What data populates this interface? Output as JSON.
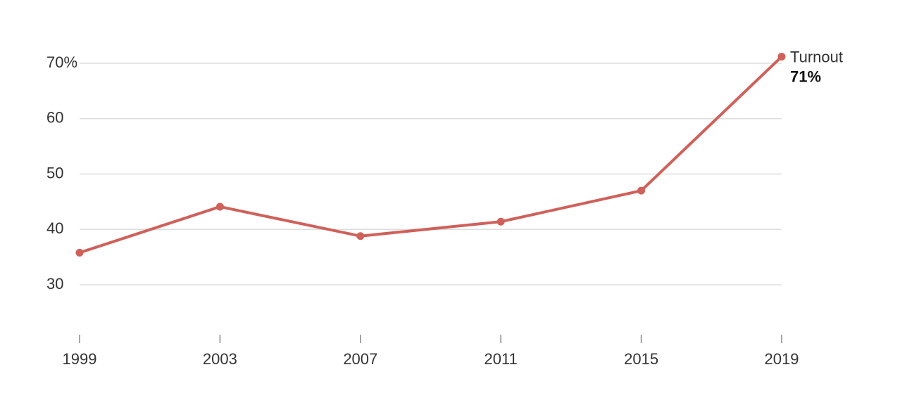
{
  "chart_data": {
    "type": "line",
    "x": [
      1999,
      2003,
      2007,
      2011,
      2015,
      2019
    ],
    "series": [
      {
        "name": "Turnout",
        "color": "#d0605a",
        "values": [
          35.8,
          44.1,
          38.8,
          41.4,
          47.0,
          71.2
        ],
        "value_labels": [
          null,
          null,
          null,
          null,
          null,
          "71%"
        ]
      }
    ],
    "xlim": [
      1999,
      2019
    ],
    "xticks": [
      1999,
      2003,
      2007,
      2011,
      2015,
      2019
    ],
    "ylim": [
      20,
      72
    ],
    "yticks": [
      30,
      40,
      50,
      60,
      {
        "value": 70,
        "label": "70%"
      }
    ],
    "grid": true
  }
}
